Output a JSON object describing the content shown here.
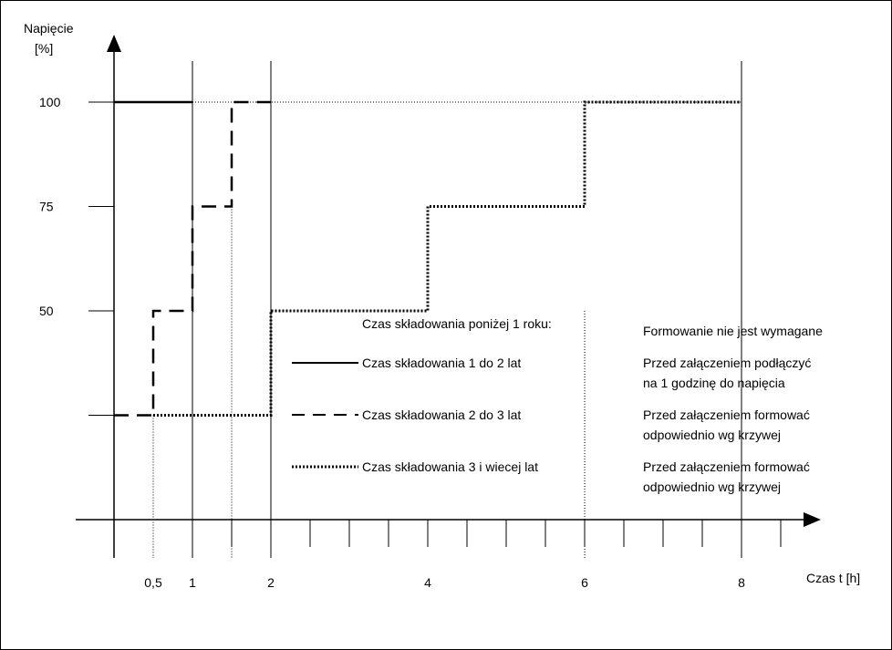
{
  "chart_data": {
    "type": "line",
    "ylabel_line1": "Napięcie",
    "ylabel_line2": "[%]",
    "xlabel": "Czas t [h]",
    "x_tick_labels": [
      {
        "x": 0.5,
        "label": "0,5"
      },
      {
        "x": 1,
        "label": "1"
      },
      {
        "x": 2,
        "label": "2"
      },
      {
        "x": 4,
        "label": "4"
      },
      {
        "x": 6,
        "label": "6"
      },
      {
        "x": 8,
        "label": "8"
      }
    ],
    "y_tick_labels": [
      {
        "y": 100,
        "label": "100"
      },
      {
        "y": 75,
        "label": "75"
      },
      {
        "y": 50,
        "label": "50"
      }
    ],
    "xlim": [
      0,
      9
    ],
    "ylim": [
      0,
      100
    ],
    "series": [
      {
        "name": "Czas składowania 1 do 2 lat",
        "style": "solid",
        "x": [
          0,
          1
        ],
        "y": [
          100,
          100
        ]
      },
      {
        "name": "Czas składowania 2 do 3 lat",
        "style": "dashed",
        "x": [
          0,
          0.5,
          0.5,
          1,
          1,
          1.5,
          1.5,
          2
        ],
        "y": [
          25,
          25,
          50,
          50,
          75,
          75,
          100,
          100
        ]
      },
      {
        "name": "Czas składowania 3 i wiecej lat",
        "style": "dotted",
        "x": [
          0.5,
          2,
          2,
          4,
          4,
          6,
          6,
          8
        ],
        "y": [
          25,
          25,
          50,
          50,
          75,
          75,
          100,
          100
        ]
      }
    ],
    "legend": {
      "heading": "Czas składowania poniżej 1 roku:",
      "heading_note": "Formowanie nie jest wymagane",
      "rows": [
        {
          "label": "Czas składowania 1 do 2 lat",
          "style": "solid",
          "note1": "Przed załączeniem podłączyć",
          "note2": "na 1 godzinę do napięcia"
        },
        {
          "label": "Czas składowania 2 do 3 lat",
          "style": "dashed",
          "note1": "Przed załączeniem formować",
          "note2": "odpowiednio wg krzywej"
        },
        {
          "label": "Czas składowania 3 i wiecej lat",
          "style": "dotted",
          "note1": "Przed załączeniem formować",
          "note2": "odpowiednio wg krzywej"
        }
      ]
    },
    "colors": {
      "line": "#000000",
      "background": "#ffffff"
    }
  }
}
